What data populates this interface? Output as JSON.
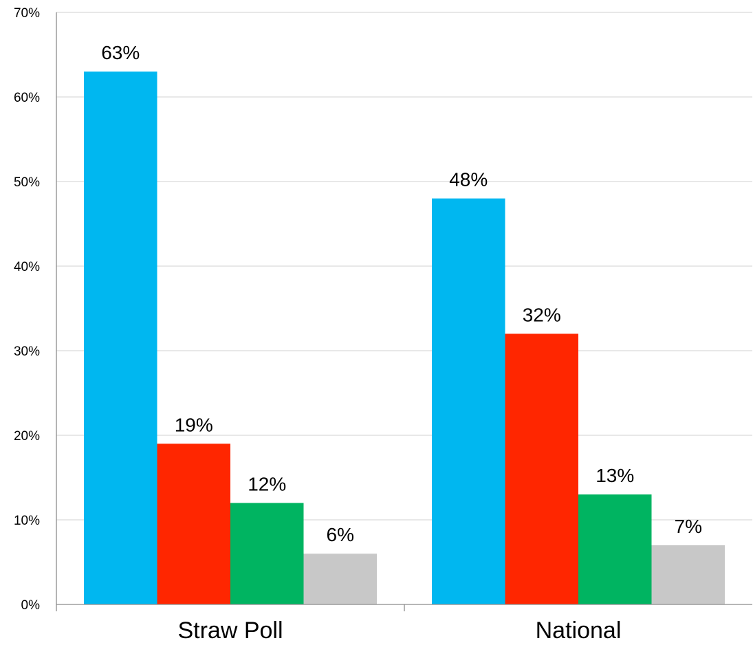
{
  "chart_data": {
    "type": "bar",
    "categories": [
      "Straw Poll",
      "National"
    ],
    "series": [
      {
        "values": [
          63,
          48
        ],
        "color": "#00b7f0"
      },
      {
        "values": [
          19,
          32
        ],
        "color": "#ff2600"
      },
      {
        "values": [
          12,
          13
        ],
        "color": "#00b461"
      },
      {
        "values": [
          6,
          7
        ],
        "color": "#c8c8c8"
      }
    ],
    "data_labels": [
      [
        "63%",
        "48%"
      ],
      [
        "19%",
        "32%"
      ],
      [
        "12%",
        "13%"
      ],
      [
        "6%",
        "7%"
      ]
    ],
    "ylim": [
      0,
      70
    ],
    "yticks": [
      0,
      10,
      20,
      30,
      40,
      50,
      60,
      70
    ],
    "ytick_labels": [
      "0%",
      "10%",
      "20%",
      "30%",
      "40%",
      "50%",
      "60%",
      "70%"
    ],
    "grid": true,
    "legend": "none",
    "title": "",
    "xlabel": "",
    "ylabel": ""
  }
}
